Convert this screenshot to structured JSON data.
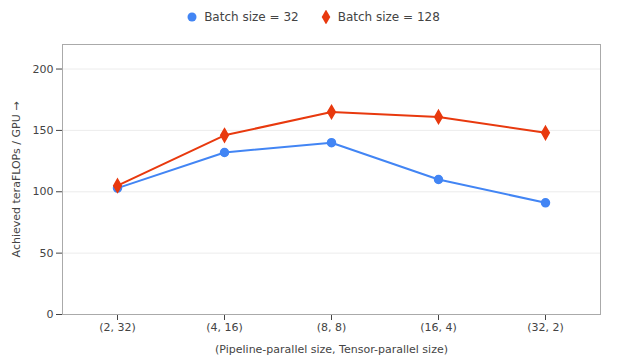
{
  "chart_data": {
    "type": "line",
    "categories": [
      "(2, 32)",
      "(4, 16)",
      "(8, 8)",
      "(16, 4)",
      "(32, 2)"
    ],
    "series": [
      {
        "name": "Batch size = 32",
        "color": "#4285F4",
        "marker": "circle",
        "values": [
          103,
          132,
          140,
          110,
          91
        ]
      },
      {
        "name": "Batch size = 128",
        "color": "#E8390E",
        "marker": "diamond",
        "values": [
          105,
          146,
          165,
          161,
          148
        ]
      }
    ],
    "xlabel": "(Pipeline-parallel size, Tensor-parallel size)",
    "ylabel": "Achieved teraFLOPs / GPU",
    "ylim": [
      0,
      220
    ],
    "yticks": [
      0,
      50,
      100,
      150,
      200
    ],
    "grid": true,
    "legend": "top"
  }
}
